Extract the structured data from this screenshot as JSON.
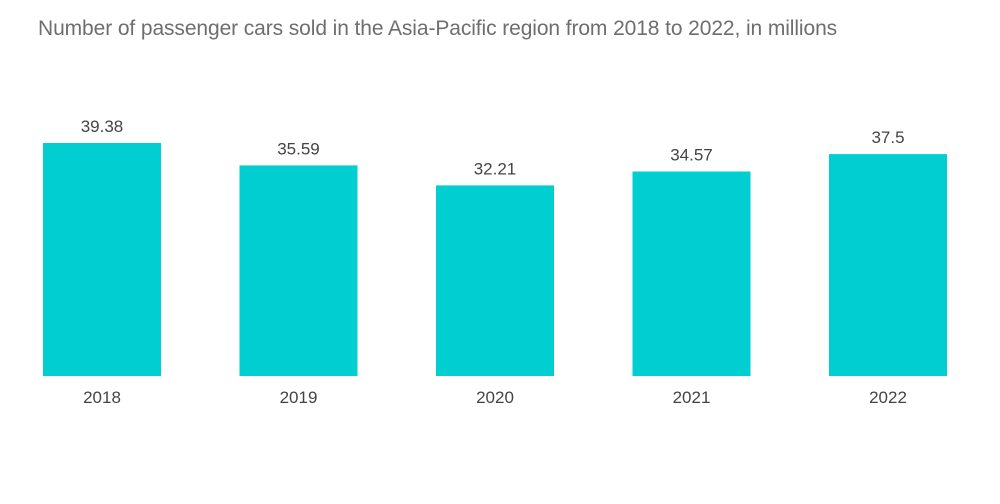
{
  "chart_data": {
    "type": "bar",
    "title": "Number of passenger cars sold in the Asia-Pacific region from 2018 to 2022, in millions",
    "categories": [
      "2018",
      "2019",
      "2020",
      "2021",
      "2022"
    ],
    "values": [
      39.38,
      35.59,
      32.21,
      34.57,
      37.5
    ],
    "value_labels": [
      "39.38",
      "35.59",
      "32.21",
      "34.57",
      "37.5"
    ],
    "xlabel": "",
    "ylabel": "",
    "ylim": [
      0,
      40
    ],
    "grid": false,
    "bar_color": "#00ced1",
    "text_color": "#444444",
    "title_color": "#6e6e6e"
  }
}
